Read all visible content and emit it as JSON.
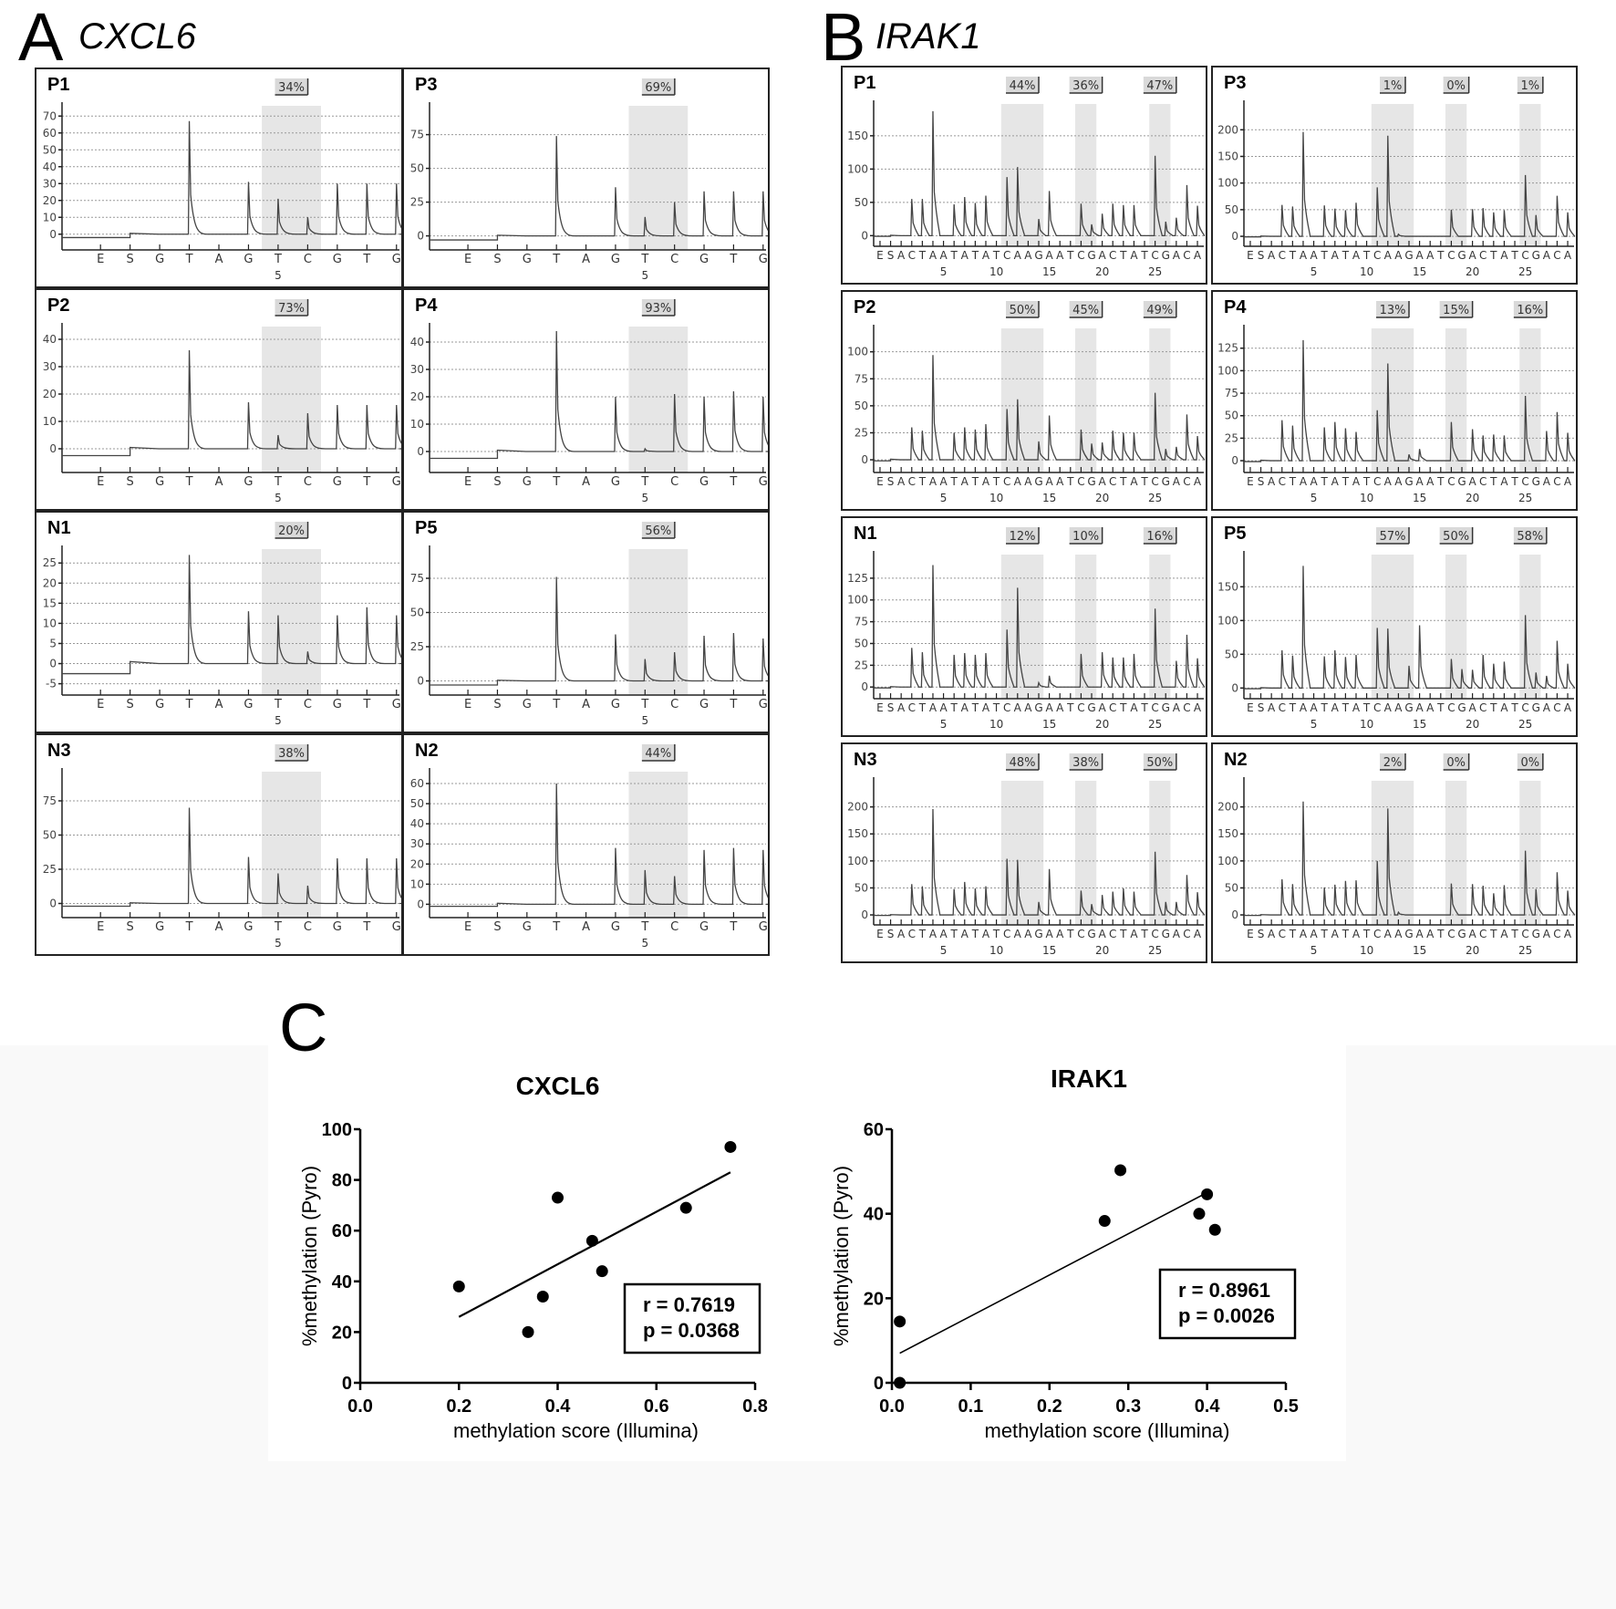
{
  "figure": {
    "panel_a": {
      "letter": "A",
      "gene": "CXCL6"
    },
    "panel_b": {
      "letter": "B",
      "gene": "IRAK1"
    },
    "panel_c": {
      "letter": "C"
    }
  },
  "chart_data": [
    {
      "type": "pyrogram-grid",
      "panel": "A",
      "gene": "CXCL6",
      "dispensation": [
        "E",
        "S",
        "G",
        "T",
        "A",
        "G",
        "T",
        "C",
        "G",
        "T",
        "G"
      ],
      "position_labels": [
        {
          "index": 6,
          "label": "5"
        }
      ],
      "cpg_regions": [
        {
          "start": 6,
          "end": 7
        }
      ],
      "samples": [
        {
          "id": "P1",
          "methylation": [
            "34%"
          ],
          "yticks": [
            0,
            10,
            20,
            30,
            40,
            50,
            60,
            70
          ],
          "ylim": [
            -5,
            75
          ],
          "peaks": [
            0,
            0,
            0,
            67,
            0,
            31,
            21,
            10,
            30,
            30,
            30
          ],
          "baseline_start": -2
        },
        {
          "id": "P3",
          "methylation": [
            "69%"
          ],
          "yticks": [
            0,
            25,
            50,
            75
          ],
          "ylim": [
            -5,
            95
          ],
          "peaks": [
            0,
            14,
            0,
            74,
            0,
            36,
            14,
            25,
            33,
            33,
            33
          ],
          "baseline_start": -3
        },
        {
          "id": "P2",
          "methylation": [
            "73%"
          ],
          "yticks": [
            0,
            10,
            20,
            30,
            40
          ],
          "ylim": [
            -6,
            44
          ],
          "peaks": [
            0,
            0,
            0,
            36,
            0,
            17,
            5,
            13,
            16,
            16,
            16
          ],
          "baseline_start": -2.5
        },
        {
          "id": "P4",
          "methylation": [
            "93%"
          ],
          "yticks": [
            0,
            10,
            20,
            30,
            40
          ],
          "ylim": [
            -5,
            45
          ],
          "peaks": [
            0,
            0,
            0,
            44,
            0,
            20,
            1,
            21,
            20,
            22,
            20
          ],
          "baseline_start": -2.5
        },
        {
          "id": "N1",
          "methylation": [
            "20%"
          ],
          "yticks": [
            -5,
            0,
            5,
            10,
            15,
            20,
            25
          ],
          "ylim": [
            -6,
            28
          ],
          "peaks": [
            0,
            0,
            0,
            27,
            0,
            13,
            12,
            3,
            12,
            14,
            12
          ],
          "baseline_start": -2.5
        },
        {
          "id": "P5",
          "methylation": [
            "56%"
          ],
          "yticks": [
            0,
            25,
            50,
            75
          ],
          "ylim": [
            -5,
            95
          ],
          "peaks": [
            0,
            0,
            0,
            76,
            0,
            34,
            16,
            21,
            33,
            35,
            31
          ],
          "baseline_start": -3
        },
        {
          "id": "N3",
          "methylation": [
            "38%"
          ],
          "yticks": [
            0,
            25,
            50,
            75
          ],
          "ylim": [
            -5,
            95
          ],
          "peaks": [
            0,
            0,
            0,
            70,
            0,
            34,
            22,
            13,
            33,
            33,
            33
          ],
          "baseline_start": -2
        },
        {
          "id": "N2",
          "methylation": [
            "44%"
          ],
          "yticks": [
            0,
            10,
            20,
            30,
            40,
            50,
            60
          ],
          "ylim": [
            -3,
            65
          ],
          "peaks": [
            0,
            0,
            0,
            60,
            0,
            28,
            17,
            14,
            27,
            28,
            27
          ],
          "baseline_start": -1
        }
      ]
    },
    {
      "type": "pyrogram-grid",
      "panel": "B",
      "gene": "IRAK1",
      "dispensation": [
        "E",
        "S",
        "A",
        "C",
        "T",
        "A",
        "A",
        "T",
        "A",
        "T",
        "A",
        "T",
        "C",
        "A",
        "A",
        "G",
        "A",
        "A",
        "T",
        "C",
        "G",
        "A",
        "C",
        "T",
        "A",
        "T",
        "C",
        "G",
        "A",
        "C",
        "A"
      ],
      "position_labels": [
        {
          "index": 6,
          "label": "5"
        },
        {
          "index": 11,
          "label": "10"
        },
        {
          "index": 16,
          "label": "15"
        },
        {
          "index": 21,
          "label": "20"
        },
        {
          "index": 26,
          "label": "25"
        }
      ],
      "cpg_regions": [
        {
          "start": 12,
          "end": 15
        },
        {
          "start": 19,
          "end": 20
        },
        {
          "start": 26,
          "end": 27
        }
      ],
      "samples": [
        {
          "id": "P1",
          "methylation": [
            "44%",
            "36%",
            "47%"
          ],
          "yticks": [
            0,
            50,
            100,
            150
          ],
          "ylim": [
            -5,
            195
          ],
          "peaks": [
            0,
            0,
            0,
            55,
            55,
            187,
            0,
            47,
            58,
            49,
            60,
            0,
            88,
            103,
            0,
            25,
            67,
            0,
            0,
            48,
            17,
            33,
            48,
            46,
            46,
            0,
            120,
            21,
            27,
            76,
            45
          ]
        },
        {
          "id": "P3",
          "methylation": [
            "1%",
            "0%",
            "1%"
          ],
          "yticks": [
            0,
            50,
            100,
            150,
            200
          ],
          "ylim": [
            -5,
            245
          ],
          "peaks": [
            0,
            0,
            0,
            59,
            56,
            196,
            0,
            58,
            52,
            49,
            63,
            0,
            92,
            189,
            4,
            0,
            0,
            0,
            0,
            50,
            0,
            51,
            53,
            45,
            49,
            0,
            115,
            40,
            0,
            76,
            45
          ]
        },
        {
          "id": "P2",
          "methylation": [
            "50%",
            "45%",
            "49%"
          ],
          "yticks": [
            0,
            25,
            50,
            75,
            100
          ],
          "ylim": [
            -5,
            120
          ],
          "peaks": [
            0,
            0,
            0,
            30,
            27,
            97,
            0,
            25,
            30,
            28,
            33,
            0,
            47,
            56,
            0,
            17,
            41,
            0,
            0,
            28,
            15,
            16,
            27,
            25,
            25,
            0,
            62,
            10,
            12,
            42,
            22
          ]
        },
        {
          "id": "P4",
          "methylation": [
            "13%",
            "15%",
            "16%"
          ],
          "yticks": [
            0,
            25,
            50,
            75,
            100,
            125
          ],
          "ylim": [
            -5,
            145
          ],
          "peaks": [
            0,
            0,
            0,
            45,
            39,
            134,
            0,
            37,
            43,
            36,
            32,
            0,
            56,
            108,
            0,
            7,
            13,
            0,
            0,
            43,
            0,
            35,
            28,
            29,
            28,
            0,
            72,
            0,
            33,
            54,
            31
          ]
        },
        {
          "id": "N1",
          "methylation": [
            "12%",
            "10%",
            "16%"
          ],
          "yticks": [
            0,
            25,
            50,
            75,
            100,
            125
          ],
          "ylim": [
            -5,
            150
          ],
          "peaks": [
            8,
            0,
            0,
            45,
            40,
            140,
            0,
            37,
            39,
            37,
            39,
            0,
            66,
            114,
            0,
            5,
            13,
            0,
            0,
            38,
            0,
            40,
            34,
            34,
            38,
            0,
            90,
            0,
            30,
            60,
            33
          ]
        },
        {
          "id": "P5",
          "methylation": [
            "57%",
            "50%",
            "58%"
          ],
          "yticks": [
            0,
            50,
            100,
            150
          ],
          "ylim": [
            -5,
            195
          ],
          "peaks": [
            0,
            0,
            0,
            56,
            48,
            181,
            0,
            47,
            56,
            46,
            49,
            0,
            89,
            88,
            0,
            33,
            93,
            0,
            0,
            43,
            28,
            27,
            49,
            36,
            39,
            0,
            108,
            23,
            18,
            70,
            36
          ]
        },
        {
          "id": "N3",
          "methylation": [
            "48%",
            "38%",
            "50%"
          ],
          "yticks": [
            0,
            50,
            100,
            150,
            200
          ],
          "ylim": [
            -5,
            245
          ],
          "peaks": [
            0,
            0,
            0,
            57,
            53,
            196,
            0,
            48,
            61,
            49,
            53,
            0,
            104,
            102,
            0,
            24,
            85,
            0,
            0,
            45,
            20,
            37,
            43,
            49,
            43,
            0,
            117,
            24,
            24,
            74,
            42
          ]
        },
        {
          "id": "N2",
          "methylation": [
            "2%",
            "0%",
            "0%"
          ],
          "yticks": [
            0,
            50,
            100,
            150,
            200
          ],
          "ylim": [
            -5,
            245
          ],
          "peaks": [
            0,
            0,
            0,
            66,
            57,
            210,
            0,
            51,
            56,
            63,
            64,
            0,
            100,
            197,
            5,
            0,
            0,
            0,
            0,
            58,
            0,
            57,
            54,
            40,
            55,
            0,
            119,
            48,
            0,
            79,
            45
          ]
        }
      ]
    },
    {
      "type": "scatter",
      "panel": "C",
      "title": "CXCL6",
      "xlabel": "methylation score (Illumina)",
      "ylabel": "%methylation (Pyro)",
      "xlim": [
        0.0,
        0.8
      ],
      "ylim": [
        0,
        100
      ],
      "xticks": [
        "0.0",
        "0.2",
        "0.4",
        "0.6",
        "0.8"
      ],
      "yticks": [
        "0",
        "20",
        "40",
        "60",
        "80",
        "100"
      ],
      "x": [
        0.2,
        0.34,
        0.37,
        0.4,
        0.47,
        0.49,
        0.66,
        0.75
      ],
      "y": [
        38,
        20,
        34,
        73,
        56,
        44,
        69,
        93
      ],
      "fit_line": {
        "x": [
          0.2,
          0.75
        ],
        "y": [
          26,
          83
        ]
      },
      "annotation": [
        "r = 0.7619",
        "p = 0.0368"
      ]
    },
    {
      "type": "scatter",
      "panel": "C",
      "title": "IRAK1",
      "xlabel": "methylation score (Illumina)",
      "ylabel": "%methylation (Pyro)",
      "xlim": [
        0.0,
        0.5
      ],
      "ylim": [
        0,
        60
      ],
      "xticks": [
        "0.0",
        "0.1",
        "0.2",
        "0.3",
        "0.4",
        "0.5"
      ],
      "yticks": [
        "0",
        "20",
        "40",
        "60"
      ],
      "x": [
        0.01,
        0.01,
        0.27,
        0.29,
        0.39,
        0.4,
        0.41
      ],
      "y": [
        14.5,
        0,
        38.3,
        50.3,
        40,
        44.6,
        36.2
      ],
      "fit_line": {
        "x": [
          0.01,
          0.4
        ],
        "y": [
          7,
          45
        ]
      },
      "annotation": [
        "r = 0.8961",
        "p = 0.0026"
      ]
    }
  ]
}
